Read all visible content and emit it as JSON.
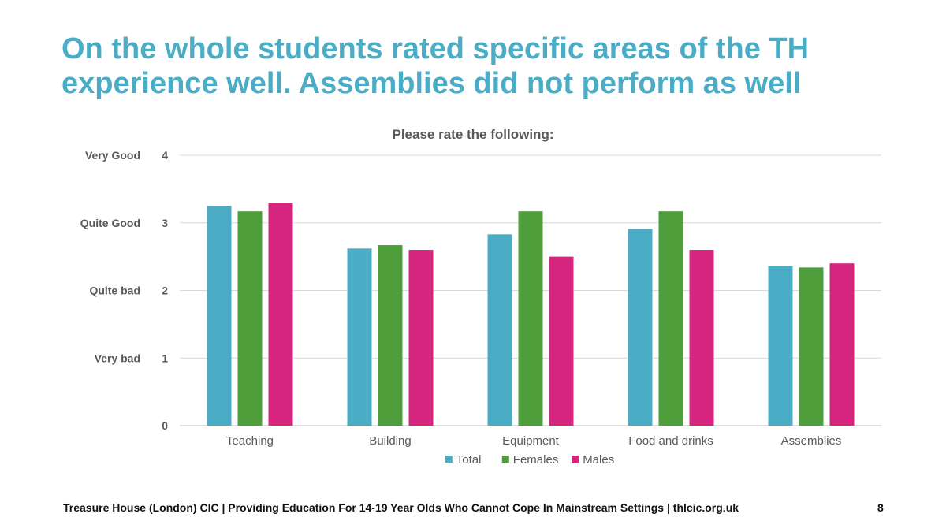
{
  "slide": {
    "title_lines": [
      "On the whole students rated specific areas of the TH",
      "experience well.  Assemblies did not perform as well"
    ],
    "footer": "Treasure House (London) CIC  |  Providing Education For 14-19 Year Olds Who Cannot Cope In Mainstream Settings  |  thlcic.org.uk",
    "page_number": "8"
  },
  "chart_data": {
    "type": "bar",
    "title": "Please rate the following:",
    "categories": [
      "Teaching",
      "Building",
      "Equipment",
      "Food and drinks",
      "Assemblies"
    ],
    "series": [
      {
        "name": "Total",
        "color": "#4bacc6",
        "values": [
          3.25,
          2.62,
          2.83,
          2.91,
          2.36
        ]
      },
      {
        "name": "Females",
        "color": "#4f9e3c",
        "values": [
          3.17,
          2.67,
          3.17,
          3.17,
          2.34
        ]
      },
      {
        "name": "Males",
        "color": "#d6257f",
        "values": [
          3.3,
          2.6,
          2.5,
          2.6,
          2.4
        ]
      }
    ],
    "ylim": [
      0,
      4
    ],
    "yticks": [
      "0",
      "1",
      "2",
      "3",
      "4"
    ],
    "ytick_text_labels": [
      "",
      "Very bad",
      "Quite bad",
      "Quite Good",
      "Very Good"
    ],
    "grid": true,
    "legend_position": "bottom"
  }
}
